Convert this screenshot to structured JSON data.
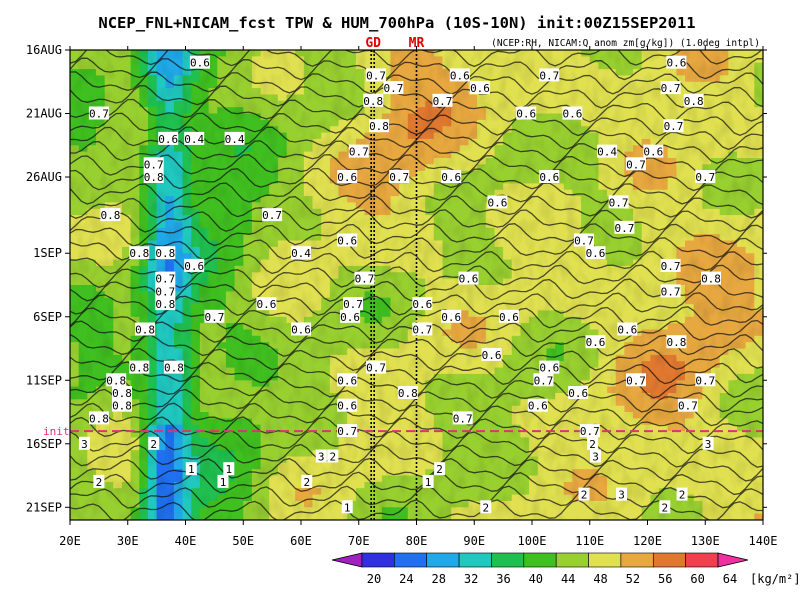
{
  "chart_data": {
    "type": "heatmap",
    "title": "NCEP_FNL+NICAM_fcst TPW & HUM_700hPa (10S-10N) init:00Z15SEP2011",
    "subtitle": "(NCEP:RH, NICAM:Q anom zm[g/kg]) (1.0deg intpl)",
    "x_axis": {
      "range": [
        20,
        140
      ],
      "unit": "E",
      "tick_labels": [
        "20E",
        "30E",
        "40E",
        "50E",
        "60E",
        "70E",
        "80E",
        "90E",
        "100E",
        "110E",
        "120E",
        "130E",
        "140E"
      ]
    },
    "y_axis": {
      "range": [
        "16AUG2011",
        "22SEP2011"
      ],
      "tick_labels": [
        "16AUG",
        "21AUG",
        "26AUG",
        "1SEP",
        "6SEP",
        "11SEP",
        "16SEP",
        "21SEP"
      ]
    },
    "init_label": "init",
    "init_date": "15SEP",
    "markers": [
      {
        "label": "GD",
        "longitude": 72.5,
        "color": "#e00000"
      },
      {
        "label": "MR",
        "longitude": 80,
        "color": "#e00000"
      }
    ],
    "colorbar": {
      "unit": "[kg/m²]",
      "levels": [
        20,
        24,
        28,
        32,
        36,
        40,
        44,
        48,
        52,
        56,
        60,
        64
      ],
      "colors": [
        "#a020c0",
        "#3030e0",
        "#2070f0",
        "#20a8e8",
        "#20c8c0",
        "#20c050",
        "#40c020",
        "#98d030",
        "#e0e050",
        "#e8a840",
        "#e07830",
        "#f04050",
        "#f030a0"
      ]
    },
    "contour_labels": [
      {
        "text": "0.6",
        "lon": 42.5,
        "date": "17AUG"
      },
      {
        "text": "0.7",
        "lon": 25,
        "date": "21AUG"
      },
      {
        "text": "0.6",
        "lon": 37,
        "date": "23AUG"
      },
      {
        "text": "0.4",
        "lon": 41.5,
        "date": "23AUG"
      },
      {
        "text": "0.4",
        "lon": 48.5,
        "date": "23AUG"
      },
      {
        "text": "0.7",
        "lon": 34.5,
        "date": "25AUG"
      },
      {
        "text": "0.8",
        "lon": 34.5,
        "date": "26AUG"
      },
      {
        "text": "0.8",
        "lon": 27,
        "date": "29AUG"
      },
      {
        "text": "0.7",
        "lon": 55,
        "date": "29AUG"
      },
      {
        "text": "0.8",
        "lon": 32,
        "date": "1SEP"
      },
      {
        "text": "0.8",
        "lon": 36.5,
        "date": "1SEP"
      },
      {
        "text": "0.6",
        "lon": 41.5,
        "date": "2SEP"
      },
      {
        "text": "0.4",
        "lon": 60,
        "date": "1SEP"
      },
      {
        "text": "0.7",
        "lon": 36.5,
        "date": "3SEP"
      },
      {
        "text": "0.7",
        "lon": 36.5,
        "date": "4SEP"
      },
      {
        "text": "0.8",
        "lon": 36.5,
        "date": "5SEP"
      },
      {
        "text": "0.7",
        "lon": 45,
        "date": "6SEP"
      },
      {
        "text": "0.6",
        "lon": 54,
        "date": "5SEP"
      },
      {
        "text": "0.6",
        "lon": 60,
        "date": "7SEP"
      },
      {
        "text": "0.8",
        "lon": 33,
        "date": "7SEP"
      },
      {
        "text": "0.8",
        "lon": 38,
        "date": "10SEP"
      },
      {
        "text": "0.8",
        "lon": 32,
        "date": "10SEP"
      },
      {
        "text": "0.8",
        "lon": 28,
        "date": "11SEP"
      },
      {
        "text": "0.8",
        "lon": 29,
        "date": "12SEP"
      },
      {
        "text": "0.8",
        "lon": 29,
        "date": "13SEP"
      },
      {
        "text": "0.8",
        "lon": 25,
        "date": "14SEP"
      },
      {
        "text": "0.7",
        "lon": 73,
        "date": "18AUG"
      },
      {
        "text": "0.7",
        "lon": 76,
        "date": "19AUG"
      },
      {
        "text": "0.8",
        "lon": 72.5,
        "date": "20AUG"
      },
      {
        "text": "0.8",
        "lon": 73.5,
        "date": "22AUG"
      },
      {
        "text": "0.7",
        "lon": 84.5,
        "date": "20AUG"
      },
      {
        "text": "0.6",
        "lon": 87.5,
        "date": "18AUG"
      },
      {
        "text": "0.6",
        "lon": 91,
        "date": "19AUG"
      },
      {
        "text": "0.7",
        "lon": 103,
        "date": "18AUG"
      },
      {
        "text": "0.6",
        "lon": 99,
        "date": "21AUG"
      },
      {
        "text": "0.6",
        "lon": 107,
        "date": "21AUG"
      },
      {
        "text": "0.6",
        "lon": 125,
        "date": "17AUG"
      },
      {
        "text": "0.7",
        "lon": 124,
        "date": "19AUG"
      },
      {
        "text": "0.8",
        "lon": 128,
        "date": "20AUG"
      },
      {
        "text": "0.7",
        "lon": 124.5,
        "date": "22AUG"
      },
      {
        "text": "0.7",
        "lon": 70,
        "date": "24AUG"
      },
      {
        "text": "0.6",
        "lon": 68,
        "date": "26AUG"
      },
      {
        "text": "0.7",
        "lon": 77,
        "date": "26AUG"
      },
      {
        "text": "0.6",
        "lon": 86,
        "date": "26AUG"
      },
      {
        "text": "0.6",
        "lon": 103,
        "date": "26AUG"
      },
      {
        "text": "0.4",
        "lon": 113,
        "date": "24AUG"
      },
      {
        "text": "0.6",
        "lon": 121,
        "date": "24AUG"
      },
      {
        "text": "0.7",
        "lon": 118,
        "date": "25AUG"
      },
      {
        "text": "0.7",
        "lon": 130,
        "date": "26AUG"
      },
      {
        "text": "0.6",
        "lon": 94,
        "date": "28AUG"
      },
      {
        "text": "0.7",
        "lon": 115,
        "date": "28AUG"
      },
      {
        "text": "0.7",
        "lon": 116,
        "date": "30AUG"
      },
      {
        "text": "0.6",
        "lon": 68,
        "date": "31AUG"
      },
      {
        "text": "0.7",
        "lon": 109,
        "date": "31AUG"
      },
      {
        "text": "0.6",
        "lon": 111,
        "date": "1SEP"
      },
      {
        "text": "0.7",
        "lon": 124,
        "date": "2SEP"
      },
      {
        "text": "0.8",
        "lon": 131,
        "date": "3SEP"
      },
      {
        "text": "0.7",
        "lon": 71,
        "date": "3SEP"
      },
      {
        "text": "0.6",
        "lon": 89,
        "date": "3SEP"
      },
      {
        "text": "0.7",
        "lon": 124,
        "date": "4SEP"
      },
      {
        "text": "0.7",
        "lon": 69,
        "date": "5SEP"
      },
      {
        "text": "0.6",
        "lon": 68.5,
        "date": "6SEP"
      },
      {
        "text": "0.6",
        "lon": 81,
        "date": "5SEP"
      },
      {
        "text": "0.7",
        "lon": 81,
        "date": "7SEP"
      },
      {
        "text": "0.6",
        "lon": 86,
        "date": "6SEP"
      },
      {
        "text": "0.6",
        "lon": 96,
        "date": "6SEP"
      },
      {
        "text": "0.6",
        "lon": 111,
        "date": "8SEP"
      },
      {
        "text": "0.6",
        "lon": 116.5,
        "date": "7SEP"
      },
      {
        "text": "0.8",
        "lon": 125,
        "date": "8SEP"
      },
      {
        "text": "0.6",
        "lon": 93,
        "date": "9SEP"
      },
      {
        "text": "0.6",
        "lon": 103,
        "date": "10SEP"
      },
      {
        "text": "0.7",
        "lon": 73,
        "date": "10SEP"
      },
      {
        "text": "0.6",
        "lon": 68,
        "date": "11SEP"
      },
      {
        "text": "0.7",
        "lon": 102,
        "date": "11SEP"
      },
      {
        "text": "0.7",
        "lon": 118,
        "date": "11SEP"
      },
      {
        "text": "0.7",
        "lon": 130,
        "date": "11SEP"
      },
      {
        "text": "0.6",
        "lon": 108,
        "date": "12SEP"
      },
      {
        "text": "0.8",
        "lon": 78.5,
        "date": "12SEP"
      },
      {
        "text": "0.6",
        "lon": 68,
        "date": "13SEP"
      },
      {
        "text": "0.6",
        "lon": 101,
        "date": "13SEP"
      },
      {
        "text": "0.7",
        "lon": 127,
        "date": "13SEP"
      },
      {
        "text": "0.7",
        "lon": 88,
        "date": "14SEP"
      },
      {
        "text": "0.7",
        "lon": 110,
        "date": "15SEP"
      },
      {
        "text": "0.7",
        "lon": 68,
        "date": "15SEP"
      },
      {
        "text": "3",
        "lon": 22.5,
        "date": "16SEP"
      },
      {
        "text": "2",
        "lon": 34.5,
        "date": "16SEP"
      },
      {
        "text": "2",
        "lon": 110.5,
        "date": "16SEP"
      },
      {
        "text": "3",
        "lon": 130.5,
        "date": "16SEP"
      },
      {
        "text": "2",
        "lon": 65.5,
        "date": "17SEP"
      },
      {
        "text": "3",
        "lon": 63.5,
        "date": "17SEP"
      },
      {
        "text": "3",
        "lon": 111,
        "date": "17SEP"
      },
      {
        "text": "2",
        "lon": 84,
        "date": "18SEP"
      },
      {
        "text": "2",
        "lon": 25,
        "date": "19SEP"
      },
      {
        "text": "1",
        "lon": 41,
        "date": "18SEP"
      },
      {
        "text": "1",
        "lon": 47.5,
        "date": "18SEP"
      },
      {
        "text": "1",
        "lon": 46.5,
        "date": "19SEP"
      },
      {
        "text": "2",
        "lon": 61,
        "date": "19SEP"
      },
      {
        "text": "1",
        "lon": 82,
        "date": "19SEP"
      },
      {
        "text": "2",
        "lon": 109,
        "date": "20SEP"
      },
      {
        "text": "3",
        "lon": 115.5,
        "date": "20SEP"
      },
      {
        "text": "2",
        "lon": 126,
        "date": "20SEP"
      },
      {
        "text": "1",
        "lon": 68,
        "date": "21SEP"
      },
      {
        "text": "2",
        "lon": 92,
        "date": "21SEP"
      },
      {
        "text": "2",
        "lon": 123,
        "date": "21SEP"
      }
    ]
  }
}
